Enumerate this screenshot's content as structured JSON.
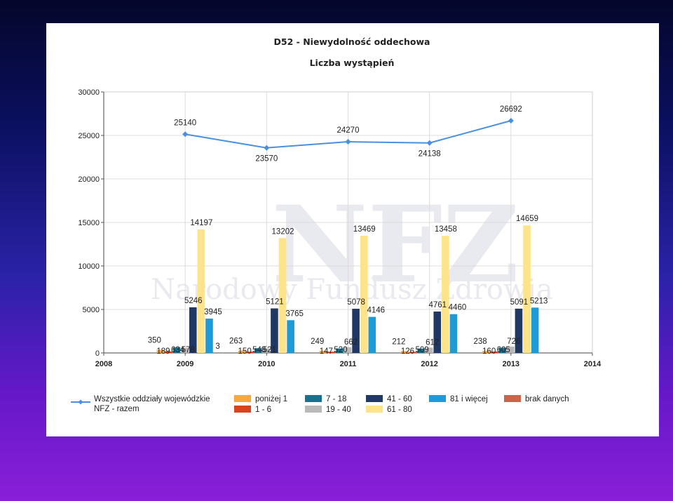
{
  "chart_data": {
    "type": "bar",
    "title": "D52 - Niewydolność oddechowa",
    "subtitle": "Liczba wystąpień",
    "watermark": {
      "logo": "NFZ",
      "text": "Narodowy Fundusz Zdrowia"
    },
    "xlim": [
      2008,
      2014
    ],
    "x_ticks": [
      "2008",
      "2009",
      "2010",
      "2011",
      "2012",
      "2013",
      "2014"
    ],
    "ylim": [
      0,
      30000
    ],
    "y_ticks": [
      "0",
      "5000",
      "10000",
      "15000",
      "20000",
      "25000",
      "30000"
    ],
    "grid": true,
    "legend_position": "bottom",
    "categories": [
      "2009",
      "2010",
      "2011",
      "2012",
      "2013"
    ],
    "line_series": {
      "name": "Wszystkie oddziały wojewódzkie NFZ - razem",
      "name_lines": [
        "Wszystkie oddziały wojewódzkie",
        "NFZ - razem"
      ],
      "color": "#4a90e2",
      "values": [
        25140,
        23570,
        24270,
        24138,
        26692
      ],
      "labels": [
        "25140",
        "23570",
        "24270",
        "24138",
        "26692"
      ]
    },
    "series": [
      {
        "name": "poniżej 1",
        "color": "#f5a742",
        "values": [
          350,
          263,
          249,
          212,
          238
        ],
        "labels": [
          "350",
          "263",
          "249",
          "212",
          "238"
        ]
      },
      {
        "name": "1 - 6",
        "color": "#d9431e",
        "values": [
          189,
          150,
          147,
          126,
          160
        ],
        "labels": [
          "189",
          "150",
          "147",
          "126",
          "160"
        ]
      },
      {
        "name": "7 - 18",
        "color": "#1b6f8f",
        "values": [
          634,
          548,
          520,
          509,
          605
        ],
        "labels": [
          "634",
          "548",
          "520",
          "509",
          "605"
        ]
      },
      {
        "name": "19 - 40",
        "color": "#b9b9b9",
        "values": [
          578,
          521,
          662,
          612,
          726
        ],
        "labels": [
          "578",
          "521",
          "662",
          "612",
          "726"
        ]
      },
      {
        "name": "41 - 60",
        "color": "#1f3864",
        "values": [
          5246,
          5121,
          5078,
          4761,
          5091
        ],
        "labels": [
          "5246",
          "5121",
          "5078",
          "4761",
          "5091"
        ]
      },
      {
        "name": "61 - 80",
        "color": "#fde48a",
        "values": [
          14197,
          13202,
          13469,
          13458,
          14659
        ],
        "labels": [
          "14197",
          "13202",
          "13469",
          "13458",
          "14659"
        ]
      },
      {
        "name": "81 i więcej",
        "color": "#1e9ad6",
        "values": [
          3945,
          3765,
          4146,
          4460,
          5213
        ],
        "labels": [
          "3945",
          "3765",
          "4146",
          "4460",
          "5213"
        ]
      },
      {
        "name": "brak danych",
        "color": "#c8654a",
        "values": [
          3,
          0,
          0,
          0,
          0
        ],
        "labels": [
          "3",
          "",
          "",
          "",
          ""
        ]
      }
    ]
  }
}
